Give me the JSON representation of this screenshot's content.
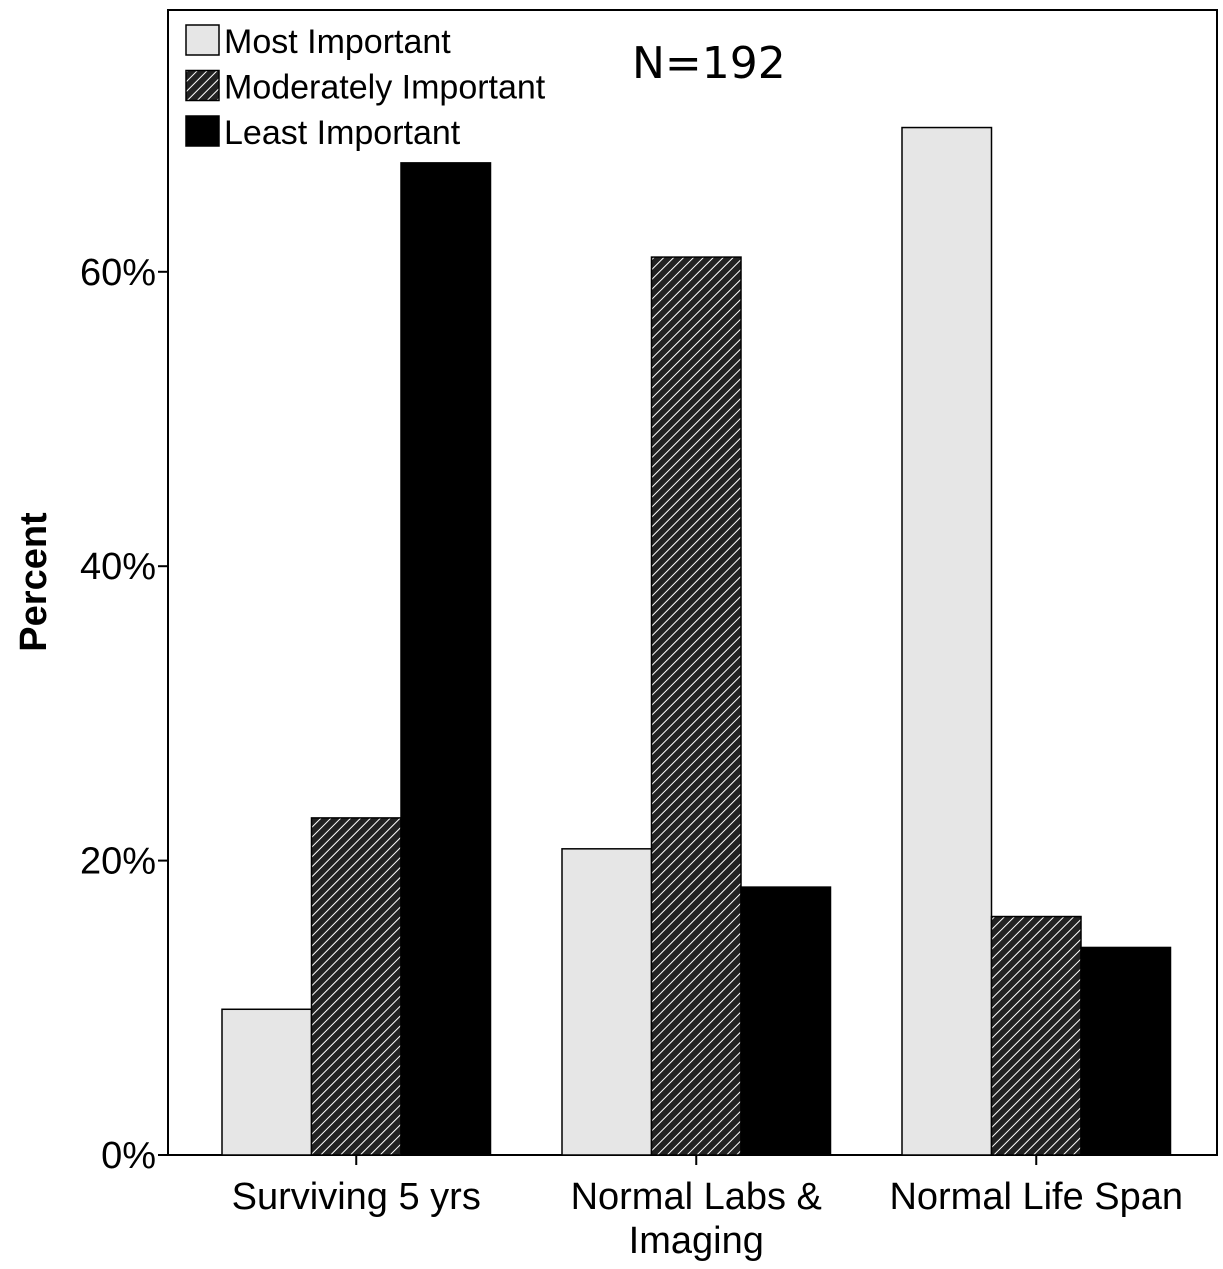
{
  "chart_data": {
    "type": "bar",
    "title": "",
    "annotation": "N=192",
    "xlabel": "",
    "ylabel": "Percent",
    "ylim": [
      0,
      77.5
    ],
    "yticks": [
      {
        "value": 0,
        "label": "0%"
      },
      {
        "value": 20,
        "label": "20%"
      },
      {
        "value": 40,
        "label": "40%"
      },
      {
        "value": 60,
        "label": "60%"
      }
    ],
    "categories": [
      [
        "Surviving 5 yrs"
      ],
      [
        "Normal Labs &",
        "Imaging"
      ],
      [
        "Normal Life Span"
      ]
    ],
    "series": [
      {
        "name": "Most Important",
        "pattern": "solid",
        "color": "#e6e6e6",
        "values": [
          9.9,
          20.8,
          69.8
        ]
      },
      {
        "name": "Moderately Important",
        "pattern": "hatch",
        "color": "#222222",
        "values": [
          22.9,
          61.0,
          16.2
        ]
      },
      {
        "name": "Least Important",
        "pattern": "solid",
        "color": "#000000",
        "values": [
          67.4,
          18.2,
          14.1
        ]
      }
    ],
    "legend_position": "top-left",
    "grid": false
  }
}
